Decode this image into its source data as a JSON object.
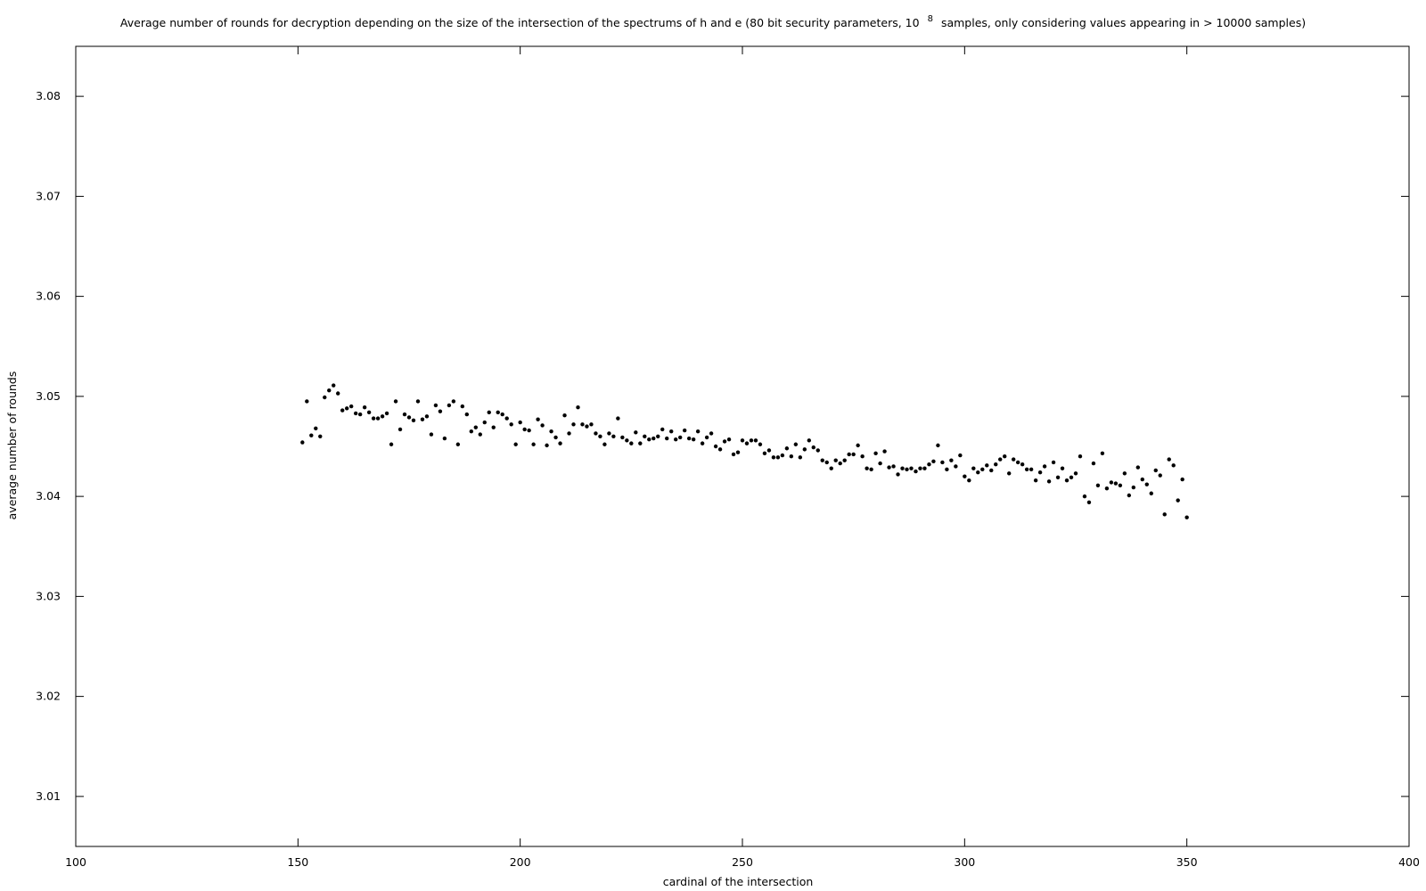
{
  "chart_data": {
    "type": "scatter",
    "title": {
      "prefix": "Average number of rounds for decryption depending on the size of the intersection of the spectrums of h and e (80 bit security parameters, 10",
      "superscript": "8",
      "suffix": "samples, only considering values appearing in > 10000 samples)"
    },
    "xlabel": "cardinal of the intersection",
    "ylabel": "average number of rounds",
    "xlim": [
      100,
      400
    ],
    "ylim": [
      3.005,
      3.085
    ],
    "xticks": [
      100,
      150,
      200,
      250,
      300,
      350,
      400
    ],
    "xtick_labels": [
      "100",
      "150",
      "200",
      "250",
      "300",
      "350",
      "400"
    ],
    "yticks": [
      3.01,
      3.02,
      3.03,
      3.04,
      3.05,
      3.06,
      3.07,
      3.08
    ],
    "ytick_labels": [
      "3.01",
      "3.02",
      "3.03",
      "3.04",
      "3.05",
      "3.06",
      "3.07",
      "3.08"
    ],
    "grid": false,
    "legend": "none",
    "marker_color": "#000000",
    "axis_color": "#000000",
    "background": "#ffffff",
    "x": [
      151,
      152,
      153,
      154,
      155,
      156,
      157,
      158,
      159,
      160,
      161,
      162,
      163,
      164,
      165,
      166,
      167,
      168,
      169,
      170,
      171,
      172,
      173,
      174,
      175,
      176,
      177,
      178,
      179,
      180,
      181,
      182,
      183,
      184,
      185,
      186,
      187,
      188,
      189,
      190,
      191,
      192,
      193,
      194,
      195,
      196,
      197,
      198,
      199,
      200,
      201,
      202,
      203,
      204,
      205,
      206,
      207,
      208,
      209,
      210,
      211,
      212,
      213,
      214,
      215,
      216,
      217,
      218,
      219,
      220,
      221,
      222,
      223,
      224,
      225,
      226,
      227,
      228,
      229,
      230,
      231,
      232,
      233,
      234,
      235,
      236,
      237,
      238,
      239,
      240,
      241,
      242,
      243,
      244,
      245,
      246,
      247,
      248,
      249,
      250,
      251,
      252,
      253,
      254,
      255,
      256,
      257,
      258,
      259,
      260,
      261,
      262,
      263,
      264,
      265,
      266,
      267,
      268,
      269,
      270,
      271,
      272,
      273,
      274,
      275,
      276,
      277,
      278,
      279,
      280,
      281,
      282,
      283,
      284,
      285,
      286,
      287,
      288,
      289,
      290,
      291,
      292,
      293,
      294,
      295,
      296,
      297,
      298,
      299,
      300,
      301,
      302,
      303,
      304,
      305,
      306,
      307,
      308,
      309,
      310,
      311,
      312,
      313,
      314,
      315,
      316,
      317,
      318,
      319,
      320,
      321,
      322,
      323,
      324,
      325,
      326,
      327,
      328,
      329,
      330,
      331,
      332,
      333,
      334,
      335,
      336,
      337,
      338,
      339,
      340,
      341,
      342,
      343,
      344,
      345,
      346,
      347,
      348,
      349,
      350
    ],
    "y": [
      3.0454,
      3.0495,
      3.0461,
      3.0468,
      3.046,
      3.0499,
      3.0506,
      3.0511,
      3.0503,
      3.0486,
      3.0488,
      3.049,
      3.0483,
      3.0482,
      3.0489,
      3.0484,
      3.0478,
      3.0478,
      3.048,
      3.0483,
      3.0452,
      3.0495,
      3.0467,
      3.0482,
      3.0479,
      3.0476,
      3.0495,
      3.0477,
      3.048,
      3.0462,
      3.0491,
      3.0485,
      3.0458,
      3.0491,
      3.0495,
      3.0452,
      3.049,
      3.0482,
      3.0465,
      3.0469,
      3.0462,
      3.0474,
      3.0484,
      3.0469,
      3.0484,
      3.0482,
      3.0478,
      3.0472,
      3.0452,
      3.0474,
      3.0467,
      3.0466,
      3.0452,
      3.0477,
      3.0471,
      3.0451,
      3.0465,
      3.0459,
      3.0453,
      3.0481,
      3.0463,
      3.0472,
      3.0489,
      3.0472,
      3.047,
      3.0472,
      3.0463,
      3.046,
      3.0452,
      3.0463,
      3.046,
      3.0478,
      3.0459,
      3.0456,
      3.0453,
      3.0464,
      3.0453,
      3.046,
      3.0457,
      3.0458,
      3.046,
      3.0467,
      3.0458,
      3.0465,
      3.0457,
      3.0459,
      3.0466,
      3.0458,
      3.0457,
      3.0465,
      3.0453,
      3.0459,
      3.0463,
      3.045,
      3.0447,
      3.0455,
      3.0457,
      3.0442,
      3.0444,
      3.0456,
      3.0453,
      3.0456,
      3.0456,
      3.0452,
      3.0443,
      3.0446,
      3.0439,
      3.0439,
      3.0441,
      3.0448,
      3.044,
      3.0452,
      3.0439,
      3.0447,
      3.0456,
      3.0449,
      3.0446,
      3.0436,
      3.0434,
      3.0428,
      3.0436,
      3.0433,
      3.0436,
      3.0442,
      3.0442,
      3.0451,
      3.044,
      3.0428,
      3.0427,
      3.0443,
      3.0433,
      3.0445,
      3.0429,
      3.043,
      3.0422,
      3.0428,
      3.0427,
      3.0428,
      3.0425,
      3.0428,
      3.0428,
      3.0432,
      3.0435,
      3.0451,
      3.0434,
      3.0427,
      3.0436,
      3.043,
      3.0441,
      3.042,
      3.0416,
      3.0428,
      3.0424,
      3.0427,
      3.0431,
      3.0426,
      3.0432,
      3.0437,
      3.044,
      3.0423,
      3.0437,
      3.0434,
      3.0432,
      3.0427,
      3.0427,
      3.0416,
      3.0424,
      3.043,
      3.0415,
      3.0434,
      3.0419,
      3.0428,
      3.0416,
      3.0419,
      3.0423,
      3.044,
      3.04,
      3.0394,
      3.0433,
      3.0411,
      3.0443,
      3.0408,
      3.0414,
      3.0413,
      3.0411,
      3.0423,
      3.0401,
      3.0409,
      3.0429,
      3.0417,
      3.0412,
      3.0403,
      3.0426,
      3.0421,
      3.0382,
      3.0437,
      3.0431,
      3.0396,
      3.0417,
      3.0379
    ]
  }
}
